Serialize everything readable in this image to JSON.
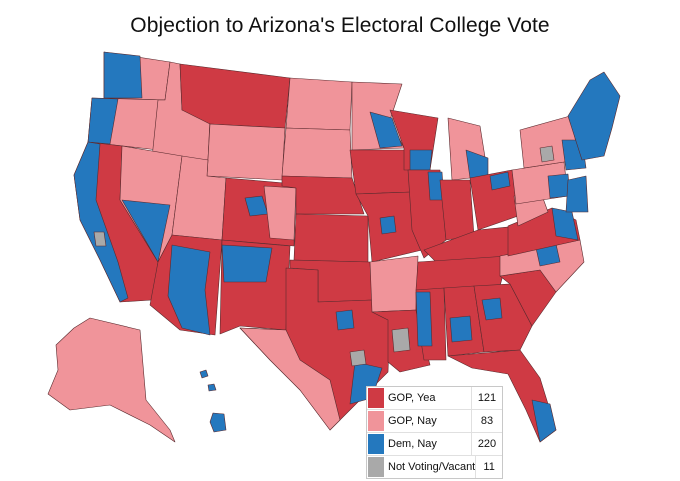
{
  "title": "Objection to Arizona's Electoral College Vote",
  "colors": {
    "gop_yea": "#cf3a44",
    "gop_nay": "#f0949a",
    "dem_nay": "#2478be",
    "vacant": "#a9a9a9",
    "border": "#5a2a2e"
  },
  "legend": {
    "items": [
      {
        "label": "GOP, Yea",
        "count": "121",
        "color": "#cf3a44"
      },
      {
        "label": "GOP, Nay",
        "count": "83",
        "color": "#f0949a"
      },
      {
        "label": "Dem, Nay",
        "count": "220",
        "color": "#2478be"
      },
      {
        "label": "Not Voting/Vacant",
        "count": "11",
        "color": "#a9a9a9"
      }
    ]
  }
}
